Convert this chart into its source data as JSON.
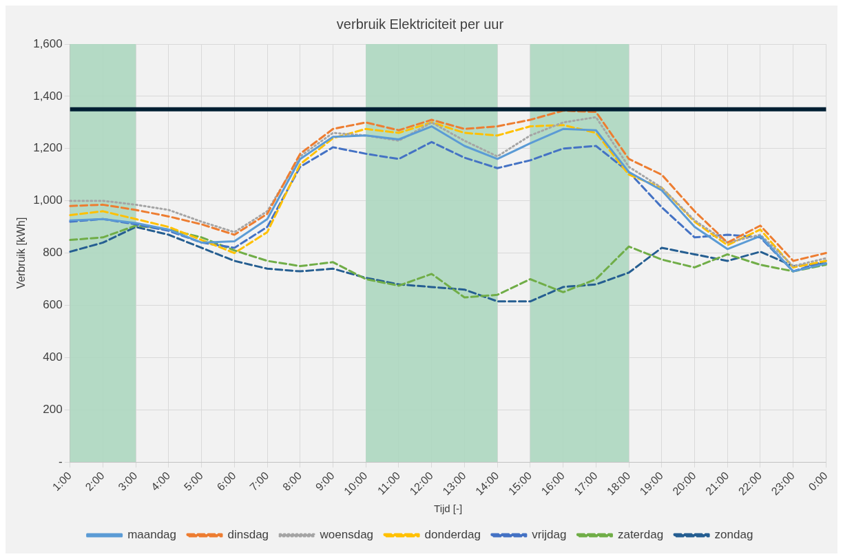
{
  "chart_data": {
    "type": "line",
    "title": "verbruik Elektriciteit per uur",
    "xlabel": "Tijd [-]",
    "ylabel": "Verbruik [kWh]",
    "categories": [
      "1:00",
      "2:00",
      "3:00",
      "4:00",
      "5:00",
      "6:00",
      "7:00",
      "8:00",
      "9:00",
      "10:00",
      "11:00",
      "12:00",
      "13:00",
      "14:00",
      "15:00",
      "16:00",
      "17:00",
      "18:00",
      "19:00",
      "20:00",
      "21:00",
      "22:00",
      "23:00",
      "0:00"
    ],
    "series": [
      {
        "name": "maandag",
        "color": "#5b9bd5",
        "line_style": "solid",
        "values": [
          925,
          930,
          915,
          890,
          840,
          845,
          930,
          1160,
          1245,
          1250,
          1235,
          1285,
          1210,
          1160,
          1220,
          1275,
          1270,
          1110,
          1040,
          900,
          815,
          865,
          730,
          760
        ]
      },
      {
        "name": "dinsdag",
        "color": "#ed7d31",
        "line_style": "dashed",
        "values": [
          980,
          985,
          965,
          940,
          910,
          870,
          950,
          1180,
          1275,
          1300,
          1270,
          1310,
          1275,
          1285,
          1310,
          1345,
          1340,
          1160,
          1100,
          960,
          840,
          905,
          770,
          800
        ]
      },
      {
        "name": "woensdag",
        "color": "#a5a5a5",
        "line_style": "dotted",
        "values": [
          1000,
          1000,
          985,
          965,
          920,
          880,
          960,
          1170,
          1260,
          1250,
          1230,
          1300,
          1230,
          1170,
          1250,
          1300,
          1320,
          1130,
          1050,
          925,
          840,
          870,
          750,
          780
        ]
      },
      {
        "name": "donderdag",
        "color": "#ffc000",
        "line_style": "dashed",
        "values": [
          945,
          960,
          930,
          900,
          850,
          800,
          880,
          1140,
          1240,
          1275,
          1260,
          1300,
          1260,
          1250,
          1285,
          1290,
          1260,
          1100,
          1050,
          920,
          830,
          890,
          745,
          770
        ]
      },
      {
        "name": "vrijdag",
        "color": "#4472c4",
        "line_style": "dashed",
        "values": [
          920,
          930,
          910,
          885,
          840,
          820,
          900,
          1130,
          1205,
          1180,
          1160,
          1225,
          1165,
          1125,
          1155,
          1200,
          1210,
          1110,
          975,
          860,
          870,
          860,
          730,
          770
        ]
      },
      {
        "name": "zaterdag",
        "color": "#70ad47",
        "line_style": "dashed",
        "values": [
          850,
          860,
          905,
          890,
          860,
          810,
          770,
          750,
          765,
          700,
          675,
          720,
          630,
          640,
          700,
          650,
          700,
          825,
          775,
          745,
          795,
          755,
          730,
          755
        ]
      },
      {
        "name": "zondag",
        "color": "#255e91",
        "line_style": "dashed",
        "values": [
          805,
          840,
          900,
          870,
          820,
          770,
          740,
          730,
          740,
          705,
          680,
          670,
          660,
          615,
          615,
          670,
          680,
          725,
          820,
          795,
          770,
          805,
          750,
          760
        ]
      }
    ],
    "ylim": [
      0,
      1600
    ],
    "yticks": [
      {
        "value": 0,
        "label": "-"
      },
      {
        "value": 200,
        "label": "200"
      },
      {
        "value": 400,
        "label": "400"
      },
      {
        "value": 600,
        "label": "600"
      },
      {
        "value": 800,
        "label": "800"
      },
      {
        "value": 1000,
        "label": "1,000"
      },
      {
        "value": 1200,
        "label": "1,200"
      },
      {
        "value": 1400,
        "label": "1,400"
      },
      {
        "value": 1600,
        "label": "1,600"
      }
    ],
    "ref_lines": [
      {
        "axis": "y",
        "value": 1350,
        "color": "#001f33"
      }
    ],
    "bands": [
      {
        "axis": "x",
        "from": "1:00",
        "to": "3:00",
        "color": "#a9d6bd"
      },
      {
        "axis": "x",
        "from": "10:00",
        "to": "14:00",
        "color": "#a9d6bd"
      },
      {
        "axis": "x",
        "from": "15:00",
        "to": "18:00",
        "color": "#a9d6bd"
      }
    ],
    "grid": true,
    "legend": "bottom",
    "marker": "none"
  }
}
